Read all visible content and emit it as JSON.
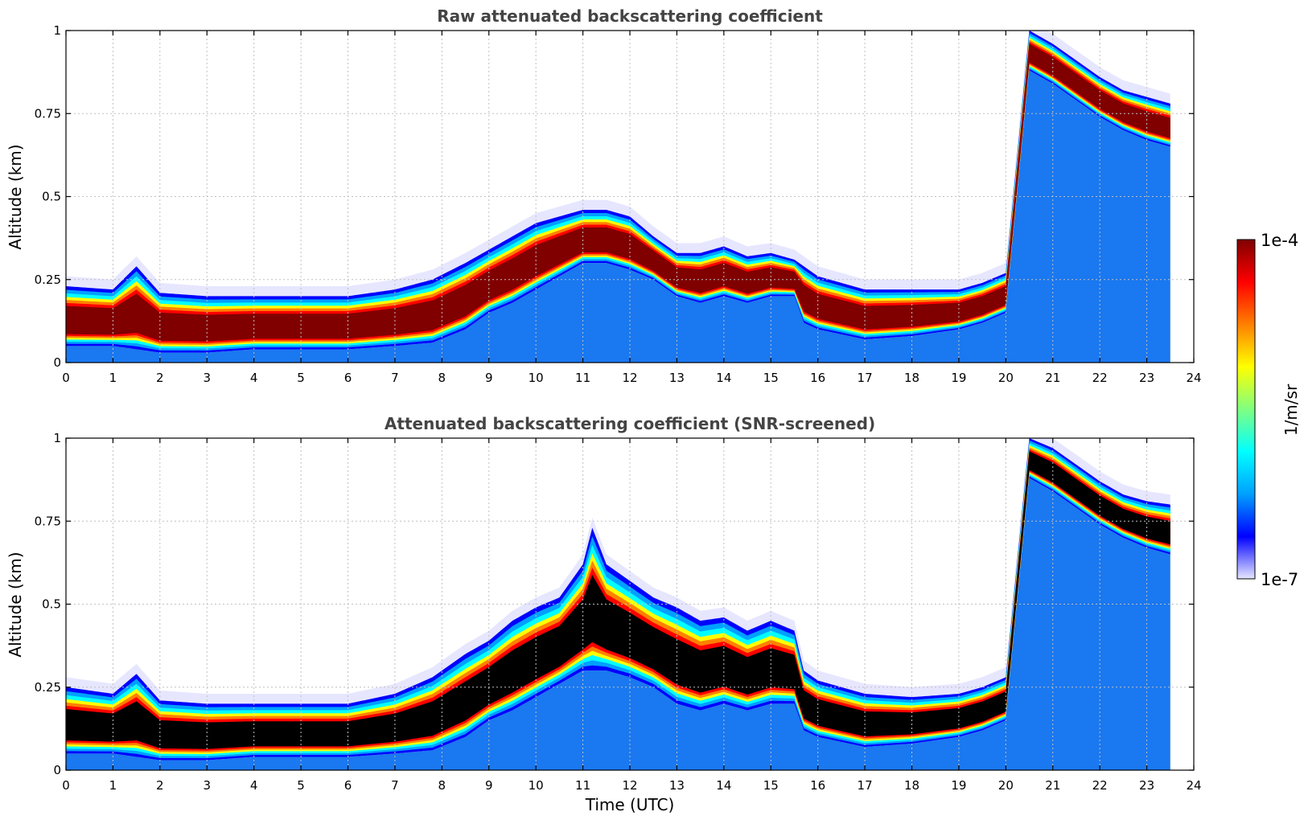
{
  "chart_data": [
    {
      "type": "heatmap",
      "id": "raw",
      "title": "Raw attenuated backscattering coefficient",
      "xlabel": "",
      "ylabel": "Altitude (km)",
      "xlim": [
        0,
        24
      ],
      "ylim": [
        0,
        1
      ],
      "x_ticks": [
        "0",
        "1",
        "2",
        "3",
        "4",
        "5",
        "6",
        "7",
        "8",
        "9",
        "10",
        "11",
        "12",
        "13",
        "14",
        "15",
        "16",
        "17",
        "18",
        "19",
        "20",
        "21",
        "22",
        "23",
        "24"
      ],
      "y_ticks": [
        "0",
        "0.25",
        "0.5",
        "0.75",
        "1"
      ],
      "y_tick_values": [
        0,
        0.25,
        0.5,
        0.75,
        1
      ],
      "grid": true,
      "data_end_time": 23.5,
      "aerosol_layer": {
        "x": [
          0,
          1,
          1.5,
          2,
          3,
          4,
          5,
          6,
          7,
          7.8,
          8.5,
          9,
          9.5,
          10,
          10.5,
          11,
          11.5,
          12,
          12.5,
          13,
          13.5,
          14,
          14.5,
          15,
          15.5,
          15.7,
          16,
          17,
          18,
          19,
          19.5,
          20,
          20.5,
          21,
          21.5,
          22,
          22.5,
          23,
          23.5
        ],
        "top": [
          0.23,
          0.22,
          0.29,
          0.21,
          0.2,
          0.2,
          0.2,
          0.2,
          0.22,
          0.25,
          0.3,
          0.34,
          0.38,
          0.42,
          0.44,
          0.46,
          0.46,
          0.44,
          0.38,
          0.33,
          0.33,
          0.35,
          0.32,
          0.33,
          0.31,
          0.29,
          0.26,
          0.22,
          0.22,
          0.22,
          0.24,
          0.27,
          1.0,
          0.96,
          0.91,
          0.86,
          0.82,
          0.8,
          0.78
        ],
        "bottom": [
          0.05,
          0.05,
          0.04,
          0.03,
          0.03,
          0.04,
          0.04,
          0.04,
          0.05,
          0.06,
          0.1,
          0.15,
          0.18,
          0.22,
          0.26,
          0.3,
          0.3,
          0.28,
          0.25,
          0.2,
          0.18,
          0.2,
          0.18,
          0.2,
          0.2,
          0.12,
          0.1,
          0.07,
          0.08,
          0.1,
          0.12,
          0.15,
          0.88,
          0.84,
          0.79,
          0.74,
          0.7,
          0.67,
          0.65
        ]
      },
      "screened_black_core": false
    },
    {
      "type": "heatmap",
      "id": "screened",
      "title": "Attenuated backscattering coefficient (SNR-screened)",
      "xlabel": "Time (UTC)",
      "ylabel": "Altitude (km)",
      "xlim": [
        0,
        24
      ],
      "ylim": [
        0,
        1
      ],
      "x_ticks": [
        "0",
        "1",
        "2",
        "3",
        "4",
        "5",
        "6",
        "7",
        "8",
        "9",
        "10",
        "11",
        "12",
        "13",
        "14",
        "15",
        "16",
        "17",
        "18",
        "19",
        "20",
        "21",
        "22",
        "23",
        "24"
      ],
      "y_ticks": [
        "0",
        "0.25",
        "0.5",
        "0.75",
        "1"
      ],
      "y_tick_values": [
        0,
        0.25,
        0.5,
        0.75,
        1
      ],
      "grid": true,
      "data_end_time": 23.5,
      "aerosol_layer": {
        "x": [
          0,
          1,
          1.5,
          2,
          3,
          4,
          5,
          6,
          7,
          7.8,
          8.5,
          9,
          9.5,
          10,
          10.5,
          11,
          11.2,
          11.5,
          12,
          12.5,
          13,
          13.5,
          14,
          14.5,
          15,
          15.5,
          15.7,
          16,
          17,
          18,
          19,
          19.5,
          20,
          20.5,
          21,
          21.5,
          22,
          22.5,
          23,
          23.5
        ],
        "top": [
          0.25,
          0.23,
          0.29,
          0.21,
          0.2,
          0.2,
          0.2,
          0.2,
          0.23,
          0.28,
          0.35,
          0.39,
          0.45,
          0.49,
          0.52,
          0.62,
          0.73,
          0.62,
          0.57,
          0.52,
          0.49,
          0.45,
          0.46,
          0.42,
          0.45,
          0.42,
          0.3,
          0.27,
          0.23,
          0.22,
          0.23,
          0.25,
          0.28,
          1.0,
          0.97,
          0.92,
          0.87,
          0.83,
          0.81,
          0.8
        ],
        "bottom": [
          0.05,
          0.05,
          0.04,
          0.03,
          0.03,
          0.04,
          0.04,
          0.04,
          0.05,
          0.06,
          0.1,
          0.15,
          0.18,
          0.22,
          0.26,
          0.3,
          0.3,
          0.3,
          0.28,
          0.25,
          0.2,
          0.18,
          0.2,
          0.18,
          0.2,
          0.2,
          0.12,
          0.1,
          0.07,
          0.08,
          0.1,
          0.12,
          0.15,
          0.88,
          0.84,
          0.79,
          0.74,
          0.7,
          0.67,
          0.65
        ]
      },
      "screened_black_core": true
    }
  ],
  "colorbar": {
    "label": "1/m/sr",
    "max_label": "1e-4",
    "min_label": "1e-7",
    "colormap": [
      "#e6e6ff",
      "#0000ff",
      "#00a0ff",
      "#00ffff",
      "#80ff80",
      "#ffff00",
      "#ff8000",
      "#ff0000",
      "#800000"
    ]
  },
  "colors": {
    "core": "#800000",
    "screened_core": "#000000",
    "below_layer": "#1a78f0",
    "background": "#ffffff",
    "grid": "#c0c0c0"
  }
}
